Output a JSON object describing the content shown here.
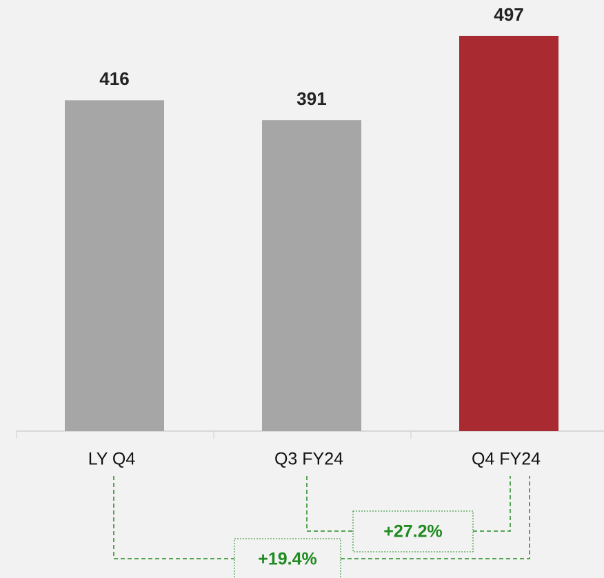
{
  "chart_data": {
    "type": "bar",
    "categories": [
      "LY Q4",
      "Q3 FY24",
      "Q4 FY24"
    ],
    "values": [
      416,
      391,
      497
    ],
    "colors": [
      "#a6a6a6",
      "#a6a6a6",
      "#a92b31"
    ],
    "annotations": [
      "+27.2%",
      "+19.4%"
    ]
  }
}
